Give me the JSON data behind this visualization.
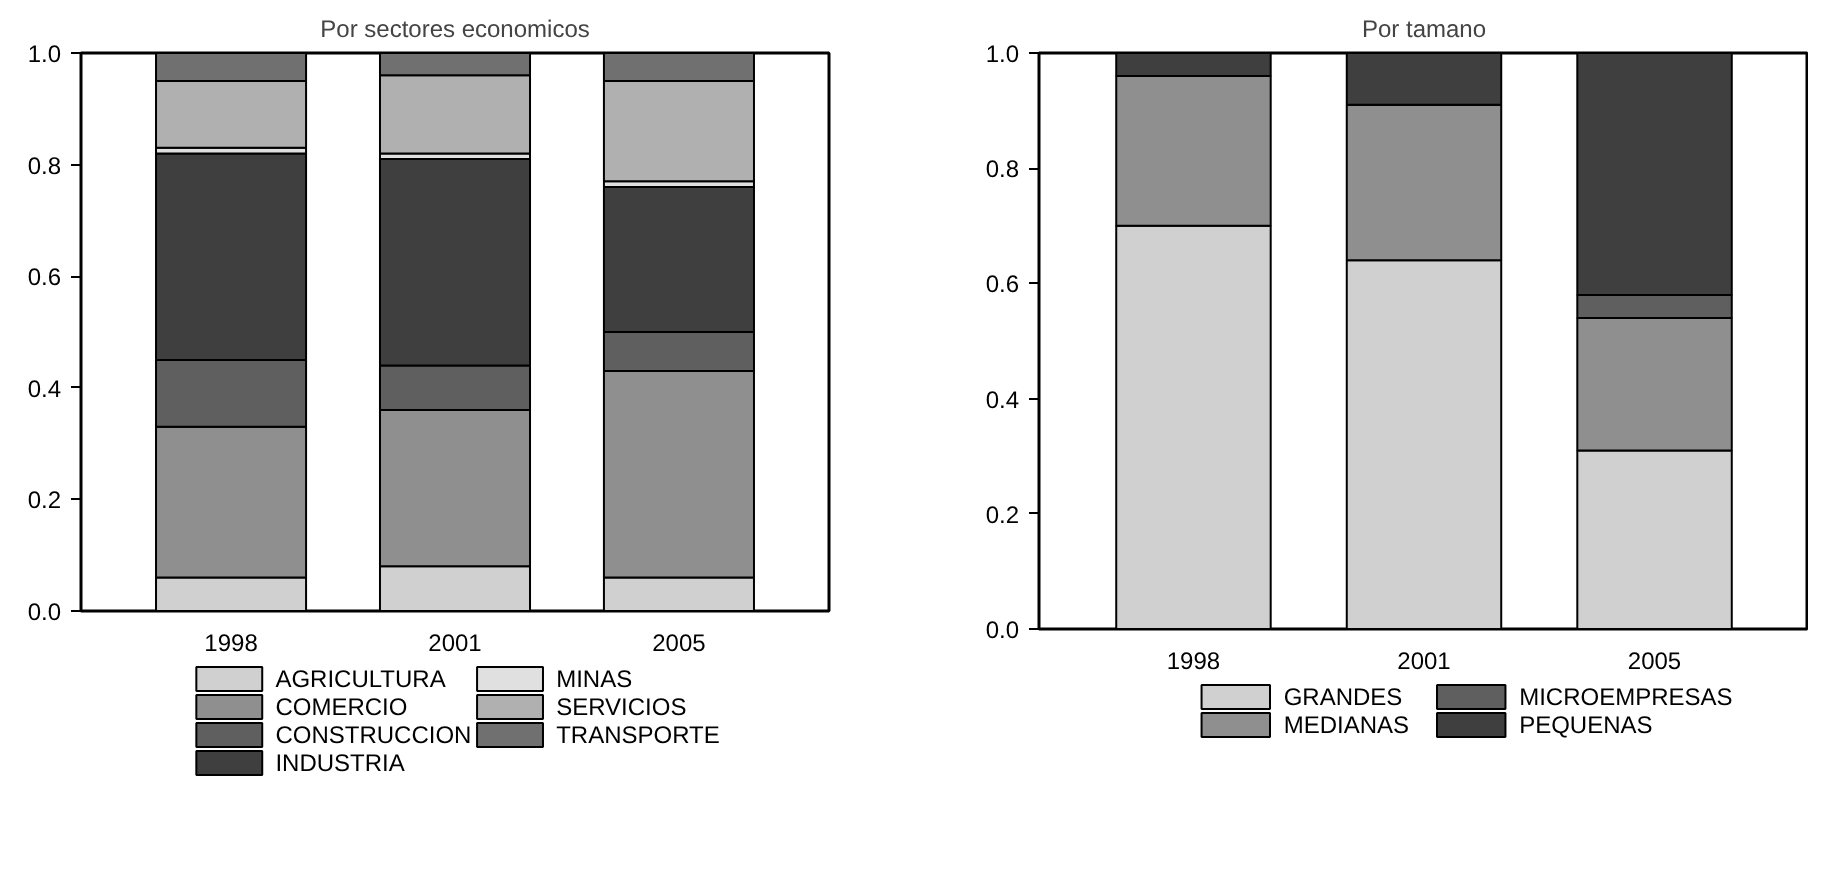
{
  "chart_data": [
    {
      "type": "bar",
      "stacked": true,
      "title": "Por sectores economicos",
      "categories": [
        "1998",
        "2001",
        "2005"
      ],
      "ylim": [
        0,
        1
      ],
      "yticks": [
        {
          "value": 0,
          "label": "0.0"
        },
        {
          "value": 0.2,
          "label": "0.2"
        },
        {
          "value": 0.4,
          "label": "0.4"
        },
        {
          "value": 0.6,
          "label": "0.6"
        },
        {
          "value": 0.8,
          "label": "0.8"
        },
        {
          "value": 1,
          "label": "1.0"
        }
      ],
      "grid": false,
      "legend": "bottom",
      "series": [
        {
          "name": "AGRICULTURA",
          "color": "#d0d0d0",
          "values": [
            0.06,
            0.08,
            0.06
          ]
        },
        {
          "name": "COMERCIO",
          "color": "#8f8f8f",
          "values": [
            0.27,
            0.28,
            0.37
          ]
        },
        {
          "name": "CONSTRUCCION",
          "color": "#5f5f5f",
          "values": [
            0.12,
            0.08,
            0.07
          ]
        },
        {
          "name": "INDUSTRIA",
          "color": "#3f3f3f",
          "values": [
            0.37,
            0.37,
            0.26
          ]
        },
        {
          "name": "MINAS",
          "color": "#e0e0e0",
          "values": [
            0.01,
            0.01,
            0.01
          ]
        },
        {
          "name": "SERVICIOS",
          "color": "#b0b0b0",
          "values": [
            0.12,
            0.14,
            0.18
          ]
        },
        {
          "name": "TRANSPORTE",
          "color": "#707070",
          "values": [
            0.05,
            0.04,
            0.05
          ]
        }
      ]
    },
    {
      "type": "bar",
      "stacked": true,
      "title": "Por tamano",
      "categories": [
        "1998",
        "2001",
        "2005"
      ],
      "ylim": [
        0,
        1
      ],
      "yticks": [
        {
          "value": 0,
          "label": "0.0"
        },
        {
          "value": 0.2,
          "label": "0.2"
        },
        {
          "value": 0.4,
          "label": "0.4"
        },
        {
          "value": 0.6,
          "label": "0.6"
        },
        {
          "value": 0.8,
          "label": "0.8"
        },
        {
          "value": 1,
          "label": "1.0"
        }
      ],
      "grid": false,
      "legend": "bottom",
      "series": [
        {
          "name": "GRANDES",
          "color": "#d0d0d0",
          "values": [
            0.7,
            0.64,
            0.31
          ]
        },
        {
          "name": "MEDIANAS",
          "color": "#8f8f8f",
          "values": [
            0.26,
            0.27,
            0.23
          ]
        },
        {
          "name": "MICROEMPRESAS",
          "color": "#5f5f5f",
          "values": [
            0,
            0,
            0.04
          ]
        },
        {
          "name": "PEQUENAS",
          "color": "#3f3f3f",
          "values": [
            0.04,
            0.09,
            0.42
          ]
        }
      ]
    }
  ]
}
